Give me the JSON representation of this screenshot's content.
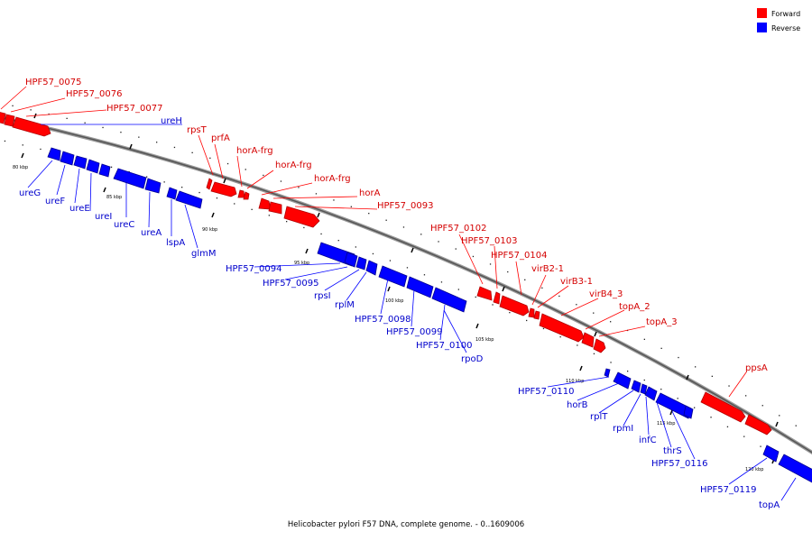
{
  "legend": [
    {
      "label": "Forward",
      "color": "#ff0000"
    },
    {
      "label": "Reverse",
      "color": "#0000ff"
    }
  ],
  "caption": "Helicobacter pylori F57 DNA, complete genome. - 0..1609006",
  "colors": {
    "forward": "#ff0000",
    "reverse": "#0000ff",
    "backbone": "#555555"
  },
  "scale_marks": [
    {
      "kbp": 80,
      "label": "80 kbp"
    },
    {
      "kbp": 85,
      "label": "85 kbp"
    },
    {
      "kbp": 90,
      "label": "90 kbp"
    },
    {
      "kbp": 95,
      "label": "95 kbp"
    },
    {
      "kbp": 100,
      "label": "100 kbp"
    },
    {
      "kbp": 105,
      "label": "105 kbp"
    },
    {
      "kbp": 110,
      "label": "110 kbp"
    },
    {
      "kbp": 115,
      "label": "115 kbp"
    },
    {
      "kbp": 120,
      "label": "120 kbp"
    }
  ],
  "forward_genes": [
    "HPF57_0075",
    "HPF57_0076",
    "HPF57_0077",
    "rpsT",
    "prfA",
    "horA-frg",
    "horA-frg",
    "horA-frg",
    "horA",
    "HPF57_0093",
    "HPF57_0102",
    "HPF57_0103",
    "HPF57_0104",
    "virB2-1",
    "virB3-1",
    "virB4_3",
    "topA_2",
    "topA_3",
    "ppsA"
  ],
  "reverse_genes": [
    "ureH",
    "ureG",
    "ureF",
    "ureE",
    "ureI",
    "ureC",
    "ureA",
    "lspA",
    "glmM",
    "HPF57_0094",
    "HPF57_0095",
    "rpsI",
    "rplM",
    "HPF57_0098",
    "HPF57_0099",
    "HPF57_0100",
    "rpoD",
    "HPF57_0110",
    "horB",
    "rplT",
    "rpmI",
    "infC",
    "thrS",
    "HPF57_0116",
    "HPF57_0119",
    "topA"
  ]
}
